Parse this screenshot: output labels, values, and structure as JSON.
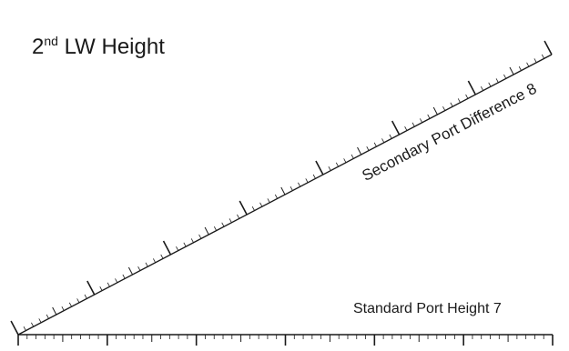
{
  "title": {
    "prefix": "2",
    "superscript": "nd",
    "rest": "LW Height"
  },
  "diagonal_scale": {
    "label": "Secondary Port Difference 8",
    "major_divisions": 7,
    "minor_per_major": 10
  },
  "horizontal_scale": {
    "label": "Standard Port Height 7",
    "major_divisions": 6,
    "minor_per_major": 10
  },
  "colors": {
    "line": "#1a1a1a",
    "background": "#ffffff"
  }
}
